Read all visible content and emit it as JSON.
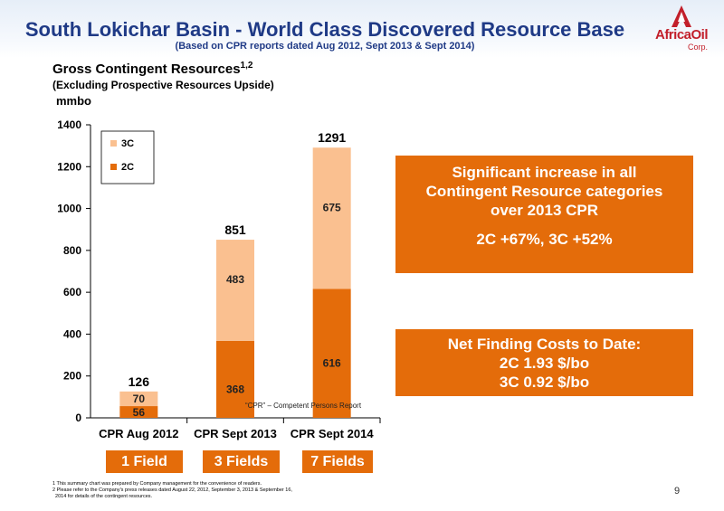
{
  "header": {
    "title": "South Lokichar Basin - World Class Discovered Resource Base",
    "subtitle": "(Based on CPR reports dated Aug 2012, Sept 2013 & Sept 2014)"
  },
  "logo": {
    "text": "AfricaOil",
    "sub": "Corp."
  },
  "chart_data": {
    "type": "bar",
    "stacked": true,
    "title": "Gross Contingent Resources",
    "title_superscript": "1,2",
    "subtitle": "(Excluding Prospective Resources Upside)",
    "ylabel": "mmbo",
    "categories": [
      "CPR Aug 2012",
      "CPR Sept 2013",
      "CPR Sept 2014"
    ],
    "series": [
      {
        "name": "2C",
        "values": [
          56,
          368,
          616
        ],
        "labels": [
          "56",
          "368",
          "616"
        ],
        "color": "#e46c0a"
      },
      {
        "name": "3C",
        "values": [
          70,
          483,
          675
        ],
        "labels": [
          "70",
          "483",
          "675"
        ],
        "color": "#fac090"
      }
    ],
    "totals": [
      126,
      851,
      1291
    ],
    "total_labels": [
      "126",
      "851",
      "1291"
    ],
    "ylim": [
      0,
      1400
    ],
    "yticks": [
      0,
      200,
      400,
      600,
      800,
      1000,
      1200,
      1400
    ],
    "ytick_labels": [
      "0",
      "200",
      "400",
      "600",
      "800",
      "1000",
      "1200",
      "1400"
    ],
    "legend": {
      "position": "top-left",
      "entries": [
        "3C",
        "2C"
      ]
    },
    "grid": false,
    "annotation": "“CPR” – Competent Persons Report"
  },
  "callouts": {
    "increase": {
      "lines": [
        "Significant increase in all",
        "Contingent Resource categories",
        "over 2013 CPR"
      ],
      "highlight": "2C +67%, 3C +52%"
    },
    "costs": {
      "lines": [
        "Net Finding Costs to Date:",
        "2C 1.93 $/bo",
        "3C 0.92 $/bo"
      ]
    }
  },
  "fields": [
    "1 Field",
    "3 Fields",
    "7 Fields"
  ],
  "footnotes": [
    "1 This summary chart was prepared by Company management for the convenience of readers.",
    "2 Please refer to the Company's press releases dated August 22, 2012, September 3, 2013 & September 16,",
    "  2014 for details of the contingent resources."
  ],
  "page_number": "9"
}
